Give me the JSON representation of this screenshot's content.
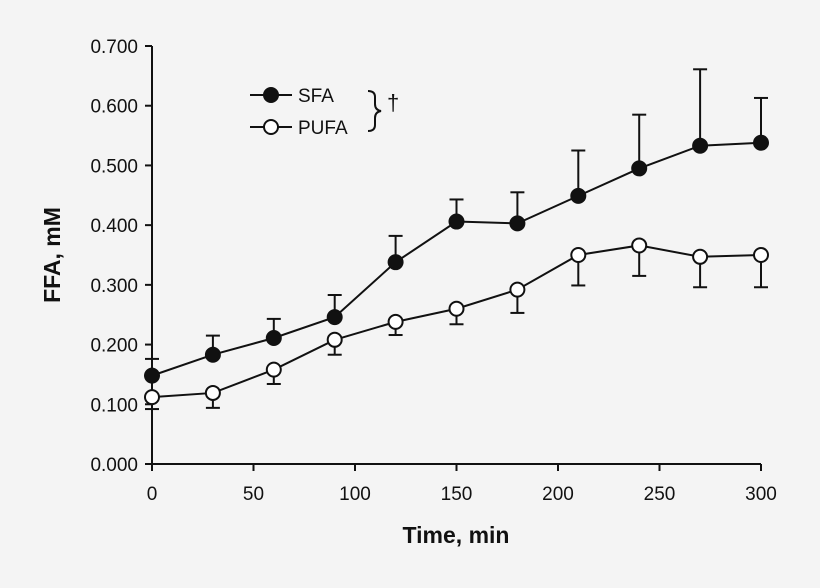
{
  "chart_data": {
    "type": "line",
    "xlabel": "Time, min",
    "ylabel": "FFA, mM",
    "xlim": [
      0,
      300
    ],
    "ylim": [
      0,
      0.7
    ],
    "x_ticks": [
      "0",
      "50",
      "100",
      "150",
      "200",
      "250",
      "300"
    ],
    "y_ticks": [
      "0.000",
      "0.100",
      "0.200",
      "0.300",
      "0.400",
      "0.500",
      "0.600",
      "0.700"
    ],
    "grid": false,
    "legend": {
      "placement": "top-left",
      "annotation": "†"
    },
    "x": [
      0,
      30,
      60,
      90,
      120,
      150,
      180,
      210,
      240,
      270,
      300
    ],
    "series": [
      {
        "name": "SFA",
        "marker": "filled-circle",
        "color": "#111111",
        "values": [
          0.148,
          0.183,
          0.211,
          0.246,
          0.338,
          0.406,
          0.403,
          0.449,
          0.495,
          0.533,
          0.538
        ],
        "error_upper": [
          0.176,
          0.215,
          0.243,
          0.283,
          0.382,
          0.443,
          0.455,
          0.525,
          0.585,
          0.661,
          0.613
        ],
        "error_direction": "up"
      },
      {
        "name": "PUFA",
        "marker": "open-circle",
        "color": "#111111",
        "values": [
          0.112,
          0.119,
          0.158,
          0.208,
          0.238,
          0.26,
          0.292,
          0.35,
          0.366,
          0.347,
          0.35
        ],
        "error_lower": [
          0.092,
          0.094,
          0.134,
          0.183,
          0.216,
          0.234,
          0.253,
          0.299,
          0.315,
          0.296,
          0.296
        ],
        "error_direction": "down"
      }
    ]
  }
}
